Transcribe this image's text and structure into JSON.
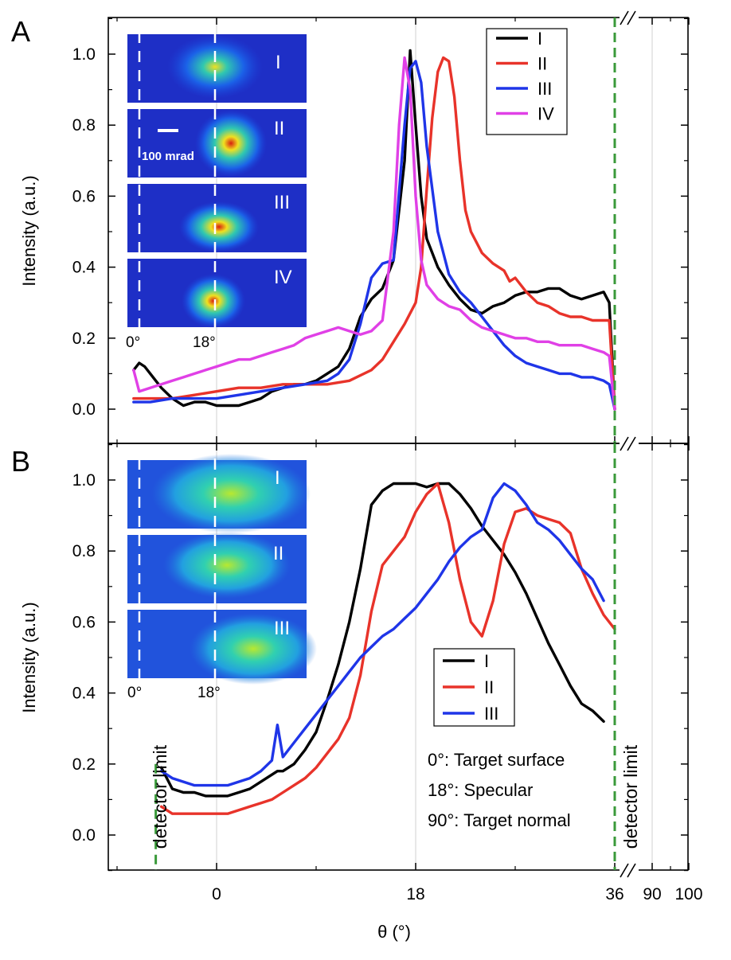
{
  "chart_data": [
    {
      "panel_label": "A",
      "type": "line",
      "xlabel": "θ (°)",
      "ylabel": "Intensity (a.u.)",
      "ylim": [
        -0.1,
        1.1
      ],
      "y_ticks": [
        "0.0",
        "0.2",
        "0.4",
        "0.6",
        "0.8",
        "1.0"
      ],
      "x_ticks": [
        "0",
        "18",
        "36",
        "90",
        "100"
      ],
      "x_axis_broken_after": 36,
      "legend_position": "top-right",
      "vlines": [
        {
          "x": 36,
          "style": "dashed",
          "color": "#3a9a3a"
        }
      ],
      "series": [
        {
          "name": "I",
          "color": "#000000",
          "x": [
            -7.5,
            -7,
            -6.5,
            -6,
            -5,
            -4,
            -3,
            -2,
            -1,
            0,
            1,
            2,
            3,
            4,
            5,
            6,
            7,
            8,
            9,
            10,
            11,
            12,
            13,
            14,
            15,
            16,
            17,
            17.5,
            18,
            18.5,
            19,
            20,
            21,
            22,
            23,
            24,
            25,
            26,
            27,
            28,
            29,
            30,
            31,
            32,
            33,
            34,
            35,
            35.5,
            36
          ],
          "y": [
            0.11,
            0.13,
            0.12,
            0.1,
            0.06,
            0.03,
            0.01,
            0.02,
            0.02,
            0.01,
            0.01,
            0.01,
            0.02,
            0.03,
            0.05,
            0.06,
            0.07,
            0.07,
            0.08,
            0.1,
            0.12,
            0.17,
            0.26,
            0.31,
            0.34,
            0.42,
            0.7,
            1.01,
            0.8,
            0.6,
            0.48,
            0.4,
            0.35,
            0.31,
            0.28,
            0.27,
            0.29,
            0.3,
            0.32,
            0.33,
            0.33,
            0.34,
            0.34,
            0.32,
            0.31,
            0.32,
            0.33,
            0.3,
            0.0
          ]
        },
        {
          "name": "II",
          "color": "#e8332a",
          "x": [
            -7.5,
            -6,
            -4,
            -2,
            0,
            2,
            4,
            6,
            8,
            10,
            12,
            14,
            15,
            16,
            17,
            18,
            18.5,
            19,
            19.5,
            20,
            20.5,
            21,
            21.5,
            22,
            22.5,
            23,
            24,
            25,
            26,
            26.5,
            27,
            28,
            29,
            30,
            31,
            32,
            33,
            34,
            35,
            35.5,
            36
          ],
          "y": [
            0.03,
            0.03,
            0.03,
            0.04,
            0.05,
            0.06,
            0.06,
            0.07,
            0.07,
            0.07,
            0.08,
            0.11,
            0.14,
            0.19,
            0.24,
            0.3,
            0.4,
            0.62,
            0.82,
            0.95,
            0.99,
            0.98,
            0.88,
            0.7,
            0.56,
            0.5,
            0.44,
            0.41,
            0.39,
            0.36,
            0.37,
            0.33,
            0.3,
            0.29,
            0.27,
            0.26,
            0.26,
            0.25,
            0.25,
            0.25,
            0.0
          ]
        },
        {
          "name": "III",
          "color": "#1f35e8",
          "x": [
            -7.5,
            -6,
            -4,
            -2,
            0,
            2,
            4,
            6,
            8,
            10,
            11,
            12,
            13,
            14,
            15,
            16,
            17,
            17.5,
            18,
            18.5,
            19,
            20,
            21,
            22,
            23,
            24,
            25,
            26,
            27,
            28,
            29,
            30,
            31,
            32,
            33,
            34,
            35,
            35.5,
            36
          ],
          "y": [
            0.02,
            0.02,
            0.03,
            0.03,
            0.03,
            0.04,
            0.05,
            0.06,
            0.07,
            0.08,
            0.1,
            0.14,
            0.24,
            0.37,
            0.41,
            0.42,
            0.8,
            0.96,
            0.98,
            0.92,
            0.74,
            0.5,
            0.38,
            0.33,
            0.3,
            0.26,
            0.22,
            0.18,
            0.15,
            0.13,
            0.12,
            0.11,
            0.1,
            0.1,
            0.09,
            0.09,
            0.08,
            0.07,
            0.0
          ]
        },
        {
          "name": "IV",
          "color": "#e040e6",
          "x": [
            -7.5,
            -7,
            -6,
            -5,
            -4,
            -3,
            -2,
            -1,
            0,
            1,
            2,
            3,
            4,
            5,
            6,
            7,
            8,
            9,
            10,
            11,
            12,
            13,
            14,
            15,
            16,
            16.5,
            17,
            17.5,
            18,
            18.5,
            19,
            20,
            21,
            22,
            23,
            24,
            25,
            26,
            27,
            28,
            29,
            30,
            31,
            32,
            33,
            34,
            35,
            35.5,
            36
          ],
          "y": [
            0.11,
            0.05,
            0.06,
            0.07,
            0.08,
            0.09,
            0.1,
            0.11,
            0.12,
            0.13,
            0.14,
            0.14,
            0.15,
            0.16,
            0.17,
            0.18,
            0.2,
            0.21,
            0.22,
            0.23,
            0.22,
            0.21,
            0.22,
            0.25,
            0.5,
            0.8,
            0.99,
            0.9,
            0.6,
            0.42,
            0.35,
            0.31,
            0.29,
            0.28,
            0.25,
            0.23,
            0.22,
            0.21,
            0.2,
            0.2,
            0.19,
            0.19,
            0.18,
            0.18,
            0.18,
            0.17,
            0.16,
            0.15,
            0.0
          ]
        }
      ],
      "insets": [
        {
          "label": "I",
          "scale_text": ""
        },
        {
          "label": "II",
          "scale_text": "100 mrad"
        },
        {
          "label": "III",
          "scale_text": ""
        },
        {
          "label": "IV",
          "scale_text": ""
        }
      ],
      "inset_axis_labels": [
        "0°",
        "18°"
      ]
    },
    {
      "panel_label": "B",
      "type": "line",
      "xlabel": "θ (°)",
      "ylabel": "Intensity (a.u.)",
      "ylim": [
        -0.1,
        1.1
      ],
      "y_ticks": [
        "0.0",
        "0.2",
        "0.4",
        "0.6",
        "0.8",
        "1.0"
      ],
      "x_ticks": [
        "0",
        "18",
        "36",
        "90",
        "100"
      ],
      "x_axis_broken_after": 36,
      "legend_position": "center-right",
      "vlines": [
        {
          "x": -5.5,
          "style": "dashed",
          "color": "#3a9a3a",
          "label": "detector limit"
        },
        {
          "x": 36,
          "style": "dashed",
          "color": "#3a9a3a",
          "label": "detector limit"
        }
      ],
      "annotations": [
        "0°: Target surface",
        "18°: Specular",
        "90°: Target normal"
      ],
      "series": [
        {
          "name": "I",
          "color": "#000000",
          "x": [
            -5,
            -4,
            -3,
            -2,
            -1,
            0,
            1,
            2,
            3,
            4,
            5,
            5.5,
            6,
            7,
            8,
            9,
            10,
            11,
            12,
            13,
            14,
            15,
            16,
            17,
            18,
            19,
            20,
            21,
            22,
            23,
            24,
            25,
            26,
            27,
            28,
            29,
            30,
            31,
            32,
            33,
            34,
            35
          ],
          "y": [
            0.19,
            0.13,
            0.12,
            0.12,
            0.11,
            0.11,
            0.11,
            0.12,
            0.13,
            0.15,
            0.17,
            0.18,
            0.18,
            0.2,
            0.24,
            0.29,
            0.38,
            0.48,
            0.6,
            0.75,
            0.93,
            0.97,
            0.99,
            0.99,
            0.99,
            0.98,
            0.99,
            0.99,
            0.96,
            0.92,
            0.87,
            0.83,
            0.79,
            0.74,
            0.68,
            0.61,
            0.54,
            0.48,
            0.42,
            0.37,
            0.35,
            0.32
          ]
        },
        {
          "name": "II",
          "color": "#e8332a",
          "x": [
            -5,
            -4,
            -3,
            -2,
            -1,
            0,
            1,
            2,
            3,
            4,
            5,
            6,
            7,
            8,
            9,
            10,
            11,
            12,
            13,
            14,
            15,
            16,
            17,
            18,
            19,
            20,
            21,
            22,
            23,
            24,
            25,
            26,
            27,
            28,
            29,
            30,
            31,
            32,
            33,
            34,
            35,
            36
          ],
          "y": [
            0.08,
            0.06,
            0.06,
            0.06,
            0.06,
            0.06,
            0.06,
            0.07,
            0.08,
            0.09,
            0.1,
            0.12,
            0.14,
            0.16,
            0.19,
            0.23,
            0.27,
            0.33,
            0.45,
            0.63,
            0.76,
            0.8,
            0.84,
            0.91,
            0.96,
            0.99,
            0.88,
            0.72,
            0.6,
            0.56,
            0.66,
            0.82,
            0.91,
            0.92,
            0.9,
            0.89,
            0.88,
            0.85,
            0.75,
            0.68,
            0.62,
            0.58
          ]
        },
        {
          "name": "III",
          "color": "#1f35e8",
          "x": [
            -5,
            -4,
            -3,
            -2,
            -1,
            0,
            1,
            2,
            3,
            4,
            5,
            5.5,
            6,
            7,
            8,
            9,
            10,
            11,
            12,
            13,
            14,
            15,
            16,
            17,
            18,
            19,
            20,
            21,
            22,
            23,
            24,
            25,
            26,
            27,
            28,
            29,
            30,
            31,
            32,
            33,
            34,
            35
          ],
          "y": [
            0.18,
            0.16,
            0.15,
            0.14,
            0.14,
            0.14,
            0.14,
            0.15,
            0.16,
            0.18,
            0.21,
            0.31,
            0.22,
            0.26,
            0.3,
            0.34,
            0.38,
            0.42,
            0.46,
            0.5,
            0.53,
            0.56,
            0.58,
            0.61,
            0.64,
            0.68,
            0.72,
            0.77,
            0.81,
            0.84,
            0.86,
            0.95,
            0.99,
            0.97,
            0.93,
            0.88,
            0.86,
            0.83,
            0.79,
            0.75,
            0.72,
            0.66
          ]
        }
      ],
      "insets": [
        {
          "label": "I"
        },
        {
          "label": "II"
        },
        {
          "label": "III"
        }
      ],
      "inset_axis_labels": [
        "0°",
        "18°"
      ]
    }
  ]
}
